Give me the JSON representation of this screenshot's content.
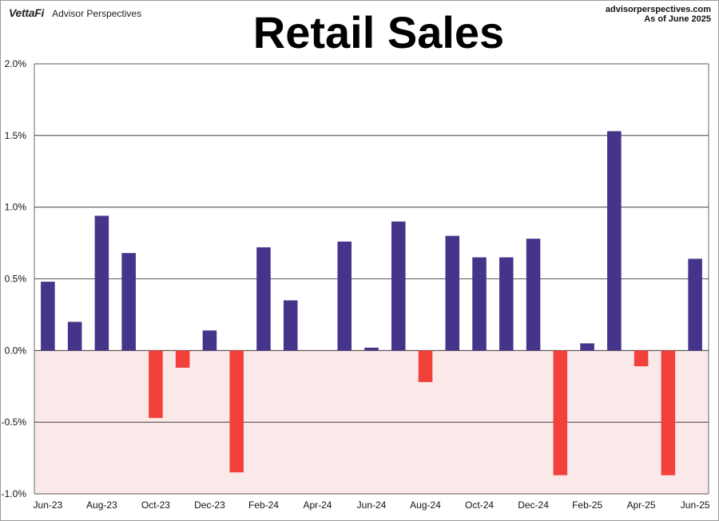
{
  "header": {
    "brand": "VettaFi",
    "brand_sub": "Advisor Perspectives",
    "source_site": "advisorperspectives.com",
    "as_of": "As of June 2025"
  },
  "chart_data": {
    "type": "bar",
    "title": "Retail Sales",
    "categories": [
      "Jun-23",
      "Jul-23",
      "Aug-23",
      "Sep-23",
      "Oct-23",
      "Nov-23",
      "Dec-23",
      "Jan-24",
      "Feb-24",
      "Mar-24",
      "Apr-24",
      "May-24",
      "Jun-24",
      "Jul-24",
      "Aug-24",
      "Sep-24",
      "Oct-24",
      "Nov-24",
      "Dec-24",
      "Jan-25",
      "Feb-25",
      "Mar-25",
      "Apr-25",
      "May-25",
      "Jun-25"
    ],
    "x_tick_labels": [
      "Jun-23",
      "Aug-23",
      "Oct-23",
      "Dec-23",
      "Feb-24",
      "Apr-24",
      "Jun-24",
      "Aug-24",
      "Oct-24",
      "Dec-24",
      "Feb-25",
      "Apr-25",
      "Jun-25"
    ],
    "values": [
      0.48,
      0.2,
      0.94,
      0.68,
      -0.47,
      -0.12,
      0.14,
      -0.85,
      0.72,
      0.35,
      0.0,
      0.76,
      0.02,
      0.9,
      -0.22,
      0.8,
      0.65,
      0.65,
      0.78,
      -0.87,
      0.05,
      1.53,
      -0.11,
      -0.87,
      0.64
    ],
    "y_ticks": [
      "2.0%",
      "1.5%",
      "1.0%",
      "0.5%",
      "0.0%",
      "-0.5%",
      "-1.0%"
    ],
    "ylim": [
      -1.0,
      2.0
    ],
    "grid": true,
    "colors": {
      "positive": "#45348a",
      "negative": "#f2413a",
      "negative_region": "#fbe9e9",
      "grid": "#222222"
    }
  }
}
